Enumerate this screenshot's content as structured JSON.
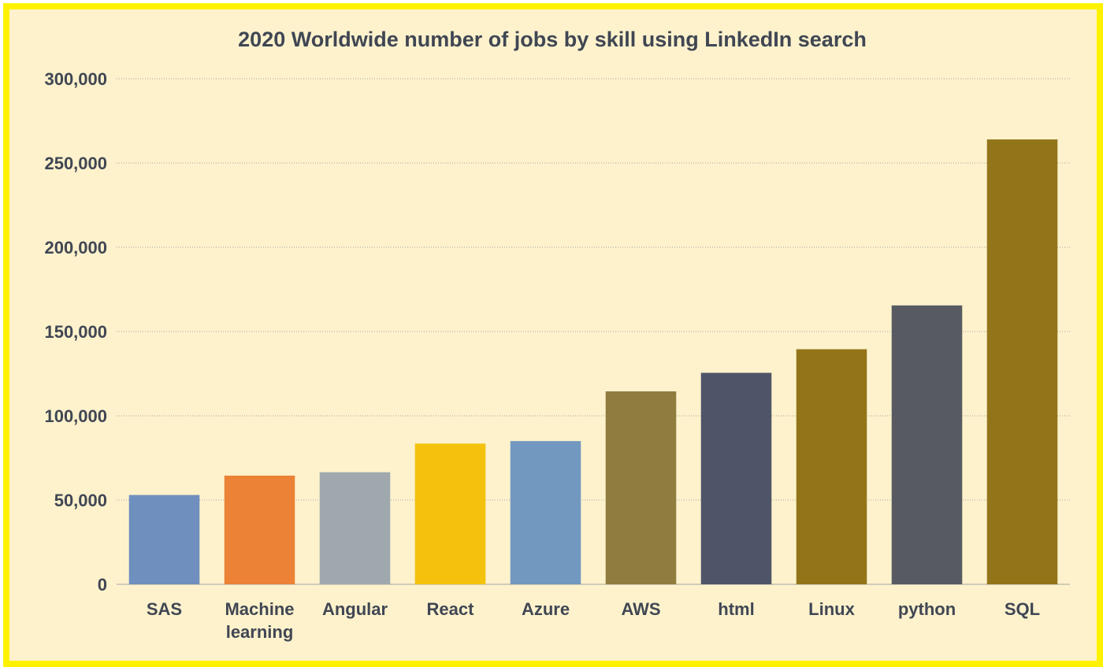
{
  "chart_data": {
    "type": "bar",
    "title": "2020 Worldwide number of jobs by skill using LinkedIn search",
    "xlabel": "",
    "ylabel": "",
    "categories": [
      "SAS",
      "Machine learning",
      "Angular",
      "React",
      "Azure",
      "AWS",
      "html",
      "Linux",
      "python",
      "SQL"
    ],
    "values": [
      53000,
      64500,
      66500,
      83500,
      85000,
      114500,
      125500,
      139500,
      165500,
      264000
    ],
    "bar_colors": [
      "#6f8fbe",
      "#ec8236",
      "#9fa8ad",
      "#f4c10c",
      "#7398c0",
      "#8f7c3e",
      "#4f5569",
      "#937519",
      "#575b61",
      "#937519"
    ],
    "ylim": [
      0,
      300000
    ],
    "yticks": [
      0,
      50000,
      100000,
      150000,
      200000,
      250000,
      300000
    ],
    "ytick_labels": [
      "0",
      "50,000",
      "100,000",
      "150,000",
      "200,000",
      "250,000",
      "300,000"
    ],
    "grid": true,
    "legend": "none",
    "background_color": "#fdf2cc",
    "frame_color": "#fff200",
    "text_color": "#404653"
  }
}
